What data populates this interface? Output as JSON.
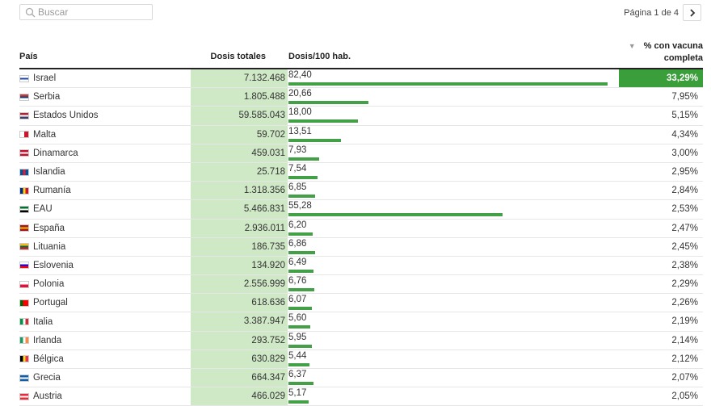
{
  "search": {
    "placeholder": "Buscar"
  },
  "pager": {
    "label": "Página 1 de 4"
  },
  "columns": {
    "country": "País",
    "total_doses": "Dosis totales",
    "per100": "Dosis/100 hab.",
    "pct_full_line1": "% con vacuna",
    "pct_full_line2": "completa"
  },
  "colors": {
    "bar": "#43a047",
    "doses_bg": "#cfe8c6",
    "pct_high": "#3a9e3a"
  },
  "chart_data": {
    "type": "table",
    "sorted_by": "% con vacuna completa",
    "sort_order": "descending",
    "rows": [
      {
        "country": "Israel",
        "total_doses": "7.132.468",
        "per100": 82.4,
        "per100_label": "82,40",
        "pct_full": 33.29,
        "pct_label": "33,29%",
        "flag": [
          "#ffffff",
          "#1f47a8",
          "#ffffff"
        ],
        "flag_dir": "h"
      },
      {
        "country": "Serbia",
        "total_doses": "1.805.488",
        "per100": 20.66,
        "per100_label": "20,66",
        "pct_full": 7.95,
        "pct_label": "7,95%",
        "flag": [
          "#c6363c",
          "#0c4076",
          "#ffffff"
        ],
        "flag_dir": "h"
      },
      {
        "country": "Estados Unidos",
        "total_doses": "59.585.043",
        "per100": 18.0,
        "per100_label": "18,00",
        "pct_full": 5.15,
        "pct_label": "5,15%",
        "flag": [
          "#b22234",
          "#ffffff",
          "#3c3b6e"
        ],
        "flag_dir": "h"
      },
      {
        "country": "Malta",
        "total_doses": "59.702",
        "per100": 13.51,
        "per100_label": "13,51",
        "pct_full": 4.34,
        "pct_label": "4,34%",
        "flag": [
          "#ffffff",
          "#cf142b"
        ],
        "flag_dir": "v"
      },
      {
        "country": "Dinamarca",
        "total_doses": "459.031",
        "per100": 7.93,
        "per100_label": "7,93",
        "pct_full": 3.0,
        "pct_label": "3,00%",
        "flag": [
          "#c8102e",
          "#ffffff",
          "#c8102e"
        ],
        "flag_dir": "h"
      },
      {
        "country": "Islandia",
        "total_doses": "25.718",
        "per100": 7.54,
        "per100_label": "7,54",
        "pct_full": 2.95,
        "pct_label": "2,95%",
        "flag": [
          "#02529c",
          "#dc1e35",
          "#02529c"
        ],
        "flag_dir": "v"
      },
      {
        "country": "Rumanía",
        "total_doses": "1.318.356",
        "per100": 6.85,
        "per100_label": "6,85",
        "pct_full": 2.84,
        "pct_label": "2,84%",
        "flag": [
          "#002b7f",
          "#fcd116",
          "#ce1126"
        ],
        "flag_dir": "v"
      },
      {
        "country": "EAU",
        "total_doses": "5.466.831",
        "per100": 55.28,
        "per100_label": "55,28",
        "pct_full": 2.53,
        "pct_label": "2,53%",
        "flag": [
          "#00732f",
          "#ffffff",
          "#000000"
        ],
        "flag_dir": "h"
      },
      {
        "country": "España",
        "total_doses": "2.936.011",
        "per100": 6.2,
        "per100_label": "6,20",
        "pct_full": 2.47,
        "pct_label": "2,47%",
        "flag": [
          "#aa151b",
          "#f1bf00",
          "#aa151b"
        ],
        "flag_dir": "h"
      },
      {
        "country": "Lituania",
        "total_doses": "186.735",
        "per100": 6.86,
        "per100_label": "6,86",
        "pct_full": 2.45,
        "pct_label": "2,45%",
        "flag": [
          "#fdb913",
          "#006a44",
          "#c1272d"
        ],
        "flag_dir": "h"
      },
      {
        "country": "Eslovenia",
        "total_doses": "134.920",
        "per100": 6.49,
        "per100_label": "6,49",
        "pct_full": 2.38,
        "pct_label": "2,38%",
        "flag": [
          "#ffffff",
          "#0000ff",
          "#ff0000"
        ],
        "flag_dir": "h"
      },
      {
        "country": "Polonia",
        "total_doses": "2.556.999",
        "per100": 6.76,
        "per100_label": "6,76",
        "pct_full": 2.29,
        "pct_label": "2,29%",
        "flag": [
          "#ffffff",
          "#dc143c"
        ],
        "flag_dir": "h"
      },
      {
        "country": "Portugal",
        "total_doses": "618.636",
        "per100": 6.07,
        "per100_label": "6,07",
        "pct_full": 2.26,
        "pct_label": "2,26%",
        "flag": [
          "#006600",
          "#ff0000",
          "#ff0000"
        ],
        "flag_dir": "v"
      },
      {
        "country": "Italia",
        "total_doses": "3.387.947",
        "per100": 5.6,
        "per100_label": "5,60",
        "pct_full": 2.19,
        "pct_label": "2,19%",
        "flag": [
          "#009246",
          "#ffffff",
          "#ce2b37"
        ],
        "flag_dir": "v"
      },
      {
        "country": "Irlanda",
        "total_doses": "293.752",
        "per100": 5.95,
        "per100_label": "5,95",
        "pct_full": 2.14,
        "pct_label": "2,14%",
        "flag": [
          "#169b62",
          "#ffffff",
          "#ff883e"
        ],
        "flag_dir": "v"
      },
      {
        "country": "Bélgica",
        "total_doses": "630.829",
        "per100": 5.44,
        "per100_label": "5,44",
        "pct_full": 2.12,
        "pct_label": "2,12%",
        "flag": [
          "#000000",
          "#fdda24",
          "#ef3340"
        ],
        "flag_dir": "v"
      },
      {
        "country": "Grecia",
        "total_doses": "664.347",
        "per100": 6.37,
        "per100_label": "6,37",
        "pct_full": 2.07,
        "pct_label": "2,07%",
        "flag": [
          "#0d5eaf",
          "#ffffff",
          "#0d5eaf"
        ],
        "flag_dir": "h"
      },
      {
        "country": "Austria",
        "total_doses": "466.029",
        "per100": 5.17,
        "per100_label": "5,17",
        "pct_full": 2.05,
        "pct_label": "2,05%",
        "flag": [
          "#ed2939",
          "#ffffff",
          "#ed2939"
        ],
        "flag_dir": "h"
      }
    ]
  }
}
